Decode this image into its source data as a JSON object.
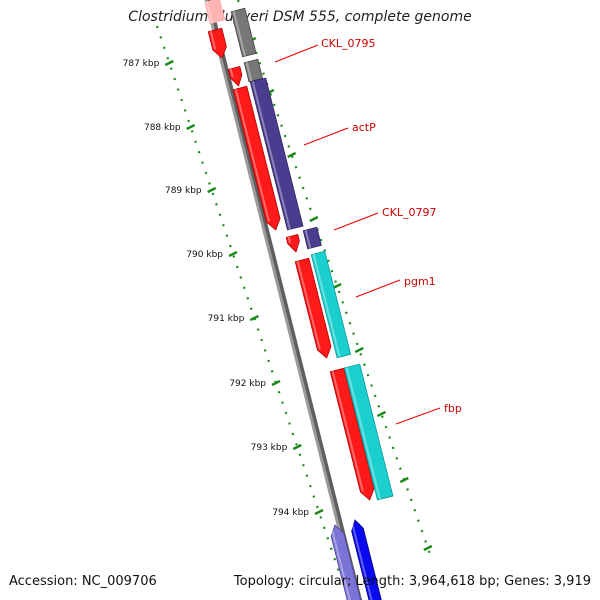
{
  "header": {
    "title": "Clostridium kluyveri DSM 555, complete genome"
  },
  "footer": {
    "accession": "Accession: NC_009706",
    "summary": "Topology: circular; Length: 3,964,618 bp; Genes: 3,919"
  },
  "chart_data": {
    "type": "genome-map",
    "axis_unit": "kbp",
    "ticks": [
      {
        "label": "787 kbp"
      },
      {
        "label": "788 kbp"
      },
      {
        "label": "789 kbp"
      },
      {
        "label": "790 kbp"
      },
      {
        "label": "791 kbp"
      },
      {
        "label": "792 kbp"
      },
      {
        "label": "793 kbp"
      },
      {
        "label": "794 kbp"
      }
    ],
    "genes": [
      {
        "name": "CKL_0795",
        "color": "#e60000"
      },
      {
        "name": "actP",
        "color": "#e60000"
      },
      {
        "name": "CKL_0797",
        "color": "#e60000"
      },
      {
        "name": "pgm1",
        "color": "#e60000"
      },
      {
        "name": "fbp",
        "color": "#e60000"
      }
    ],
    "colors": {
      "backbone": "#8a8a8a",
      "gene_red": "#ff1a1a",
      "gene_pink": "#ffb3b3",
      "gene_gray": "#777777",
      "gene_darkblue": "#4a3d8f",
      "gene_cyan": "#1ccfcf",
      "gene_blue": "#0a0aee",
      "gene_lightblue": "#7b74d6",
      "tick_green": "#1a8a1a",
      "label_red": "#cc0000"
    }
  }
}
